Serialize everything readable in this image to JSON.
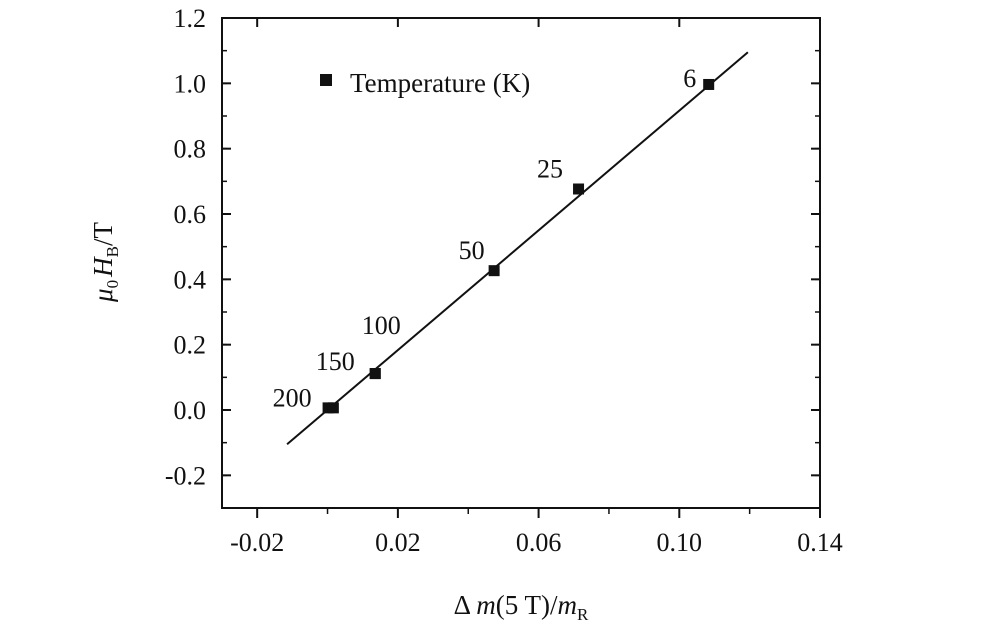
{
  "chart_data": {
    "type": "scatter",
    "title": "",
    "xlabel_parts": [
      "Δ ",
      "m",
      "(5 T)/",
      "m",
      "R"
    ],
    "ylabel_parts": [
      "μ",
      "0",
      "H",
      "B",
      "/T"
    ],
    "xlim": [
      -0.03,
      0.14
    ],
    "ylim": [
      -0.3,
      1.2
    ],
    "xticks": [
      -0.02,
      0.02,
      0.06,
      0.1,
      0.14
    ],
    "xtick_labels": [
      "-0.02",
      "0.02",
      "0.06",
      "0.10",
      "0.14"
    ],
    "yticks": [
      -0.2,
      0.0,
      0.2,
      0.4,
      0.6,
      0.8,
      1.0,
      1.2
    ],
    "ytick_labels": [
      "-0.2",
      "0.0",
      "0.2",
      "0.4",
      "0.6",
      "0.8",
      "1.0",
      "1.2"
    ],
    "legend": {
      "label": "Temperature (K)",
      "position": "top-left",
      "marker": "square"
    },
    "series": [
      {
        "points": [
          {
            "x": 0.0003,
            "y": 0.005,
            "label": "200"
          },
          {
            "x": 0.0018,
            "y": 0.005,
            "label": ""
          },
          {
            "x": 0.0137,
            "y": 0.11,
            "label": "150"
          },
          {
            "x": 0.0137,
            "y": 0.11,
            "label": "100"
          },
          {
            "x": 0.0475,
            "y": 0.425,
            "label": "50"
          },
          {
            "x": 0.0715,
            "y": 0.675,
            "label": "25"
          },
          {
            "x": 0.1085,
            "y": 0.995,
            "label": "6"
          }
        ]
      }
    ],
    "fit_line": {
      "x": [
        -0.0115,
        0.1195
      ],
      "y": [
        -0.105,
        1.095
      ]
    },
    "grid": false
  }
}
